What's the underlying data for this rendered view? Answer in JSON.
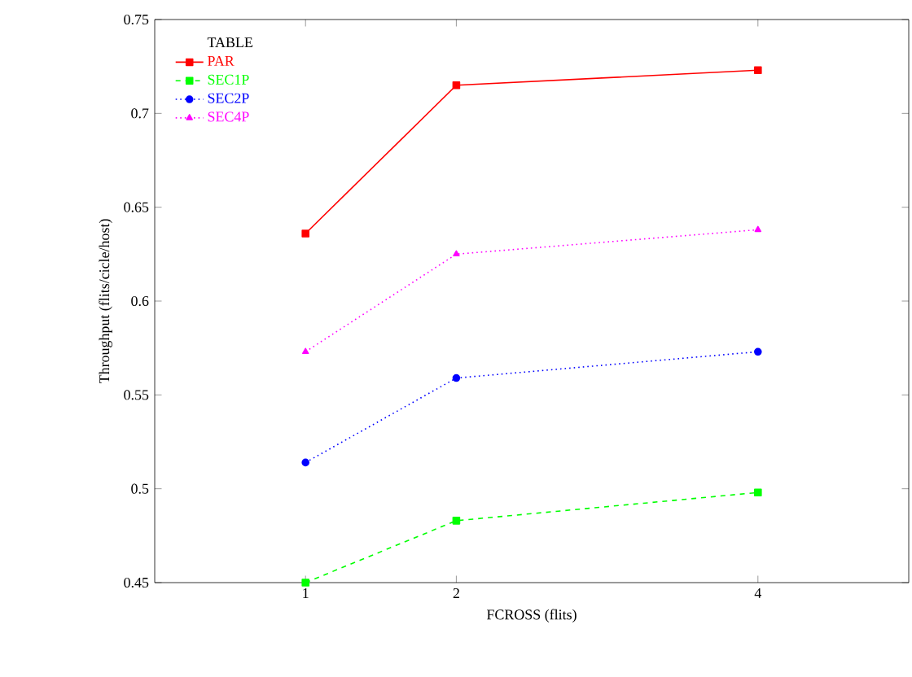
{
  "chart_data": {
    "type": "line",
    "xlabel": "FCROSS (flits)",
    "ylabel": "Throughput (flits/cicle/host)",
    "legend_title": "TABLE",
    "legend": "top left",
    "x": [
      1,
      2,
      4
    ],
    "xlim": [
      0,
      5
    ],
    "xticks": [
      1,
      2,
      4
    ],
    "ylim": [
      0.45,
      0.75
    ],
    "yticks": [
      0.45,
      0.5,
      0.55,
      0.6,
      0.65,
      0.7,
      0.75
    ],
    "series": [
      {
        "name": "PAR",
        "color": "#ff0000",
        "marker": "square",
        "line_style": "solid",
        "values": [
          0.636,
          0.715,
          0.723
        ]
      },
      {
        "name": "SEC1P",
        "color": "#00ff00",
        "marker": "square",
        "line_style": "dashed",
        "values": [
          0.45,
          0.483,
          0.498
        ]
      },
      {
        "name": "SEC2P",
        "color": "#0000ff",
        "marker": "circle",
        "line_style": "dotted",
        "values": [
          0.514,
          0.559,
          0.573
        ]
      },
      {
        "name": "SEC4P",
        "color": "#ff00ff",
        "marker": "triangle",
        "line_style": "dotted",
        "values": [
          0.573,
          0.625,
          0.638
        ]
      }
    ]
  }
}
